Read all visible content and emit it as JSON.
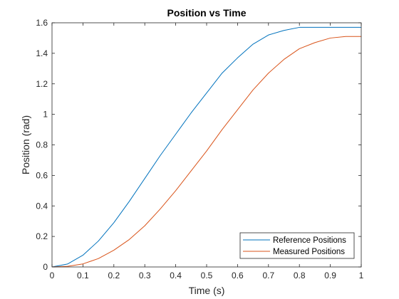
{
  "chart_data": {
    "type": "line",
    "title": "Position vs Time",
    "xlabel": "Time (s)",
    "ylabel": "Position (rad)",
    "xlim": [
      0,
      1
    ],
    "ylim": [
      0,
      1.6
    ],
    "xticks": [
      0,
      0.1,
      0.2,
      0.3,
      0.4,
      0.5,
      0.6,
      0.7,
      0.8,
      0.9,
      1
    ],
    "xtick_labels": [
      "0",
      "0.1",
      "0.2",
      "0.3",
      "0.4",
      "0.5",
      "0.6",
      "0.7",
      "0.8",
      "0.9",
      "1"
    ],
    "yticks": [
      0,
      0.2,
      0.4,
      0.6,
      0.8,
      1,
      1.2,
      1.4,
      1.6
    ],
    "ytick_labels": [
      "0",
      "0.2",
      "0.4",
      "0.6",
      "0.8",
      "1",
      "1.2",
      "1.4",
      "1.6"
    ],
    "grid": false,
    "legend_position": "bottom-right",
    "x": [
      0,
      0.05,
      0.1,
      0.15,
      0.2,
      0.25,
      0.3,
      0.35,
      0.4,
      0.45,
      0.5,
      0.55,
      0.6,
      0.65,
      0.7,
      0.75,
      0.8,
      0.85,
      0.9,
      0.95,
      1
    ],
    "series": [
      {
        "name": "Reference Positions",
        "color": "#0072BD",
        "values": [
          0,
          0.019,
          0.077,
          0.17,
          0.29,
          0.43,
          0.58,
          0.73,
          0.87,
          1.01,
          1.14,
          1.27,
          1.37,
          1.46,
          1.52,
          1.55,
          1.57,
          1.57,
          1.57,
          1.57,
          1.57
        ]
      },
      {
        "name": "Measured Positions",
        "color": "#D95319",
        "values": [
          0,
          0.004,
          0.02,
          0.055,
          0.11,
          0.18,
          0.27,
          0.38,
          0.5,
          0.63,
          0.76,
          0.9,
          1.03,
          1.16,
          1.27,
          1.36,
          1.43,
          1.47,
          1.5,
          1.51,
          1.51
        ]
      }
    ]
  }
}
